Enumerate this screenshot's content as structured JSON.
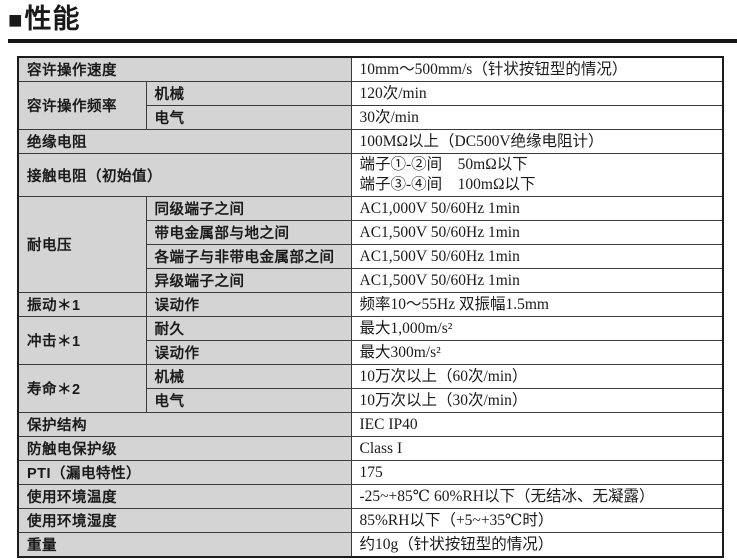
{
  "page": {
    "section_marker": "■",
    "title": "性能"
  },
  "colors": {
    "label_bg": "#d4d4d4",
    "border": "#3a3a3a",
    "outer_border": "#1c1c1c",
    "text": "#1a1a1a"
  },
  "table": {
    "groups": [
      {
        "label": "容许操作速度",
        "rows": [
          {
            "value": "10mm～500mm/s（针状按钮型的情况）"
          }
        ]
      },
      {
        "label": "容许操作频率",
        "rows": [
          {
            "sub": "机械",
            "value": "120次/min"
          },
          {
            "sub": "电气",
            "value": "30次/min"
          }
        ]
      },
      {
        "label": "绝缘电阻",
        "rows": [
          {
            "value": "100MΩ以上（DC500V绝缘电阻计）"
          }
        ]
      },
      {
        "label": "接触电阻（初始值）",
        "rows": [
          {
            "value": "端子①-②间　50mΩ以下\n端子③-④间　100mΩ以下"
          }
        ]
      },
      {
        "label": "耐电压",
        "rows": [
          {
            "sub": "同级端子之间",
            "value": "AC1,000V 50/60Hz 1min"
          },
          {
            "sub": "带电金属部与地之间",
            "value": "AC1,500V 50/60Hz 1min"
          },
          {
            "sub": "各端子与非带电金属部之间",
            "value": "AC1,500V 50/60Hz 1min"
          },
          {
            "sub": "异级端子之间",
            "value": "AC1,500V 50/60Hz 1min"
          }
        ]
      },
      {
        "label": "振动＊1",
        "rows": [
          {
            "sub": "误动作",
            "value": "频率10～55Hz 双振幅1.5mm"
          }
        ]
      },
      {
        "label": "冲击＊1",
        "rows": [
          {
            "sub": "耐久",
            "value": "最大1,000m/s²"
          },
          {
            "sub": "误动作",
            "value": "最大300m/s²"
          }
        ]
      },
      {
        "label": "寿命＊2",
        "rows": [
          {
            "sub": "机械",
            "value": "10万次以上（60次/min）"
          },
          {
            "sub": "电气",
            "value": "10万次以上（30次/min）"
          }
        ]
      },
      {
        "label": "保护结构",
        "rows": [
          {
            "value": "IEC IP40"
          }
        ]
      },
      {
        "label": "防触电保护级",
        "rows": [
          {
            "value": "Class I"
          }
        ]
      },
      {
        "label": "PTI（漏电特性）",
        "rows": [
          {
            "value": "175"
          }
        ]
      },
      {
        "label": "使用环境温度",
        "rows": [
          {
            "value": "-25~+85℃ 60%RH以下（无结冰、无凝露）"
          }
        ]
      },
      {
        "label": "使用环境湿度",
        "rows": [
          {
            "value": "85%RH以下（+5~+35℃时）"
          }
        ]
      },
      {
        "label": "重量",
        "rows": [
          {
            "value": "约10g（针状按钮型的情况）"
          }
        ]
      }
    ]
  }
}
